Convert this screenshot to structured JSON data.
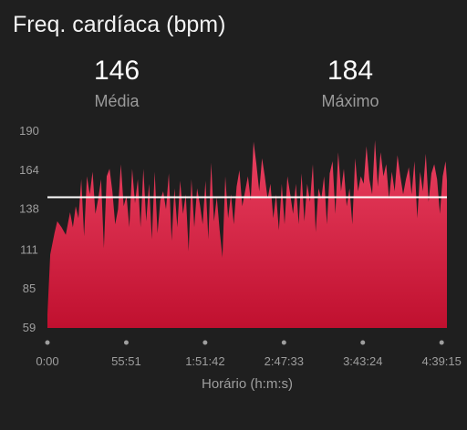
{
  "header": {
    "title": "Freq. cardíaca (bpm)"
  },
  "stats": {
    "average": {
      "value": "146",
      "label": "Média"
    },
    "maximum": {
      "value": "184",
      "label": "Máximo"
    }
  },
  "colors": {
    "background": "#1f1f1f",
    "area_top": "#ea4161",
    "area_bottom": "#c0102f",
    "average_line": "#ffffff",
    "text_muted": "#9e9e9e"
  },
  "chart_data": {
    "type": "area",
    "title": "Freq. cardíaca (bpm)",
    "xlabel": "Horário (h:m:s)",
    "ylabel": "",
    "x_tick_labels": [
      "0:00",
      "55:51",
      "1:51:42",
      "2:47:33",
      "3:43:24",
      "4:39:15"
    ],
    "x_ticks_seconds": [
      0,
      3351,
      6702,
      10053,
      13404,
      16755
    ],
    "x_range_seconds": [
      0,
      16980
    ],
    "y_tick_labels": [
      "190",
      "164",
      "138",
      "111",
      "85",
      "59"
    ],
    "y_ticks": [
      190,
      164,
      138,
      111,
      85,
      59
    ],
    "ylim": [
      59,
      190
    ],
    "average_line": 146,
    "grid": false,
    "legend": "none",
    "series": [
      {
        "x": [
          0,
          120,
          300,
          420,
          600,
          780,
          960,
          1080,
          1200,
          1320,
          1440,
          1560,
          1680,
          1800,
          1920,
          2040,
          2160,
          2280,
          2400,
          2520,
          2640,
          2760,
          2880,
          3000,
          3120,
          3240,
          3360,
          3480,
          3600,
          3720,
          3840,
          3960,
          4080,
          4200,
          4320,
          4440,
          4560,
          4680,
          4800,
          4920,
          5040,
          5160,
          5280,
          5400,
          5520,
          5640,
          5760,
          5880,
          6000,
          6120,
          6240,
          6360,
          6480,
          6600,
          6720,
          6840,
          6960,
          7080,
          7200,
          7320,
          7440,
          7560,
          7680,
          7800,
          7920,
          8040,
          8160,
          8280,
          8400,
          8520,
          8640,
          8760,
          8880,
          9000,
          9120,
          9240,
          9360,
          9480,
          9600,
          9720,
          9840,
          9960,
          10080,
          10200,
          10320,
          10440,
          10560,
          10680,
          10800,
          10920,
          11040,
          11160,
          11280,
          11400,
          11520,
          11640,
          11760,
          11880,
          12000,
          12120,
          12240,
          12360,
          12480,
          12600,
          12720,
          12840,
          12960,
          13080,
          13200,
          13320,
          13440,
          13560,
          13680,
          13800,
          13920,
          14040,
          14160,
          14280,
          14400,
          14520,
          14640,
          14760,
          14880,
          15000,
          15120,
          15240,
          15360,
          15480,
          15600,
          15720,
          15840,
          15960,
          16080,
          16200,
          16320,
          16440,
          16560,
          16680,
          16800,
          16920,
          16980
        ],
        "values": [
          68,
          108,
          122,
          130,
          126,
          121,
          136,
          126,
          140,
          132,
          158,
          120,
          160,
          148,
          163,
          135,
          145,
          158,
          112,
          160,
          165,
          150,
          128,
          138,
          168,
          140,
          147,
          126,
          165,
          142,
          158,
          126,
          165,
          130,
          155,
          118,
          163,
          122,
          144,
          150,
          138,
          162,
          117,
          152,
          126,
          157,
          135,
          148,
          110,
          158,
          126,
          152,
          141,
          128,
          157,
          118,
          169,
          130,
          146,
          124,
          106,
          160,
          132,
          148,
          128,
          153,
          164,
          140,
          150,
          160,
          144,
          183,
          168,
          150,
          172,
          160,
          145,
          155,
          132,
          148,
          124,
          155,
          128,
          160,
          148,
          135,
          155,
          128,
          162,
          130,
          155,
          143,
          168,
          123,
          152,
          145,
          160,
          128,
          162,
          170,
          135,
          176,
          150,
          165,
          140,
          152,
          128,
          172,
          150,
          160,
          155,
          180,
          158,
          148,
          184,
          153,
          176,
          160,
          168,
          145,
          163,
          150,
          174,
          160,
          148,
          158,
          166,
          148,
          170,
          132,
          163,
          150,
          175,
          143,
          162,
          168,
          158,
          135,
          160,
          170,
          157
        ]
      }
    ]
  }
}
